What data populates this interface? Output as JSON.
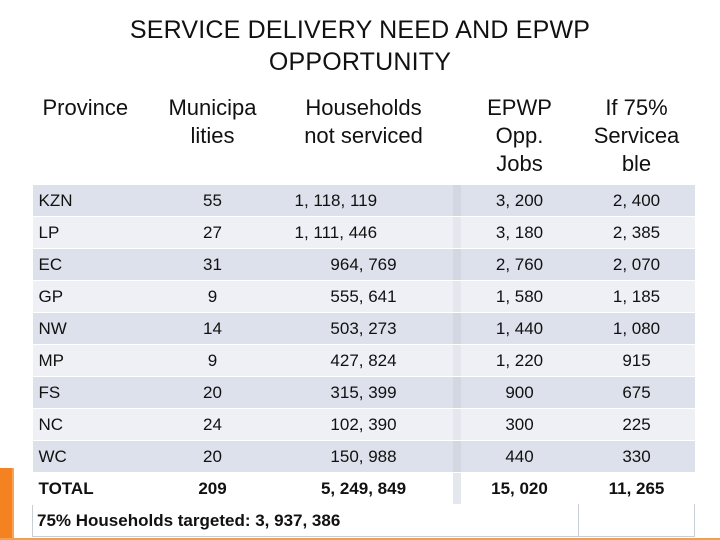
{
  "slide": {
    "title_line1": "SERVICE DELIVERY NEED AND EPWP",
    "title_line2": "OPPORTUNITY"
  },
  "table": {
    "headers": [
      "Province",
      "Municipa lities",
      "Households not serviced",
      "EPWP Opp. Jobs",
      "If 75% Servicea ble"
    ],
    "rows": [
      [
        "KZN",
        "55",
        "1, 118, 119",
        "3, 200",
        "2, 400"
      ],
      [
        "LP",
        "27",
        "1, 111, 446",
        "3, 180",
        "2, 385"
      ],
      [
        "EC",
        "31",
        "964, 769",
        "2, 760",
        "2, 070"
      ],
      [
        "GP",
        "9",
        "555, 641",
        "1, 580",
        "1, 185"
      ],
      [
        "NW",
        "14",
        "503, 273",
        "1, 440",
        "1, 080"
      ],
      [
        "MP",
        "9",
        "427, 824",
        "1, 220",
        "915"
      ],
      [
        "FS",
        "20",
        "315, 399",
        "900",
        "675"
      ],
      [
        "NC",
        "24",
        "102, 390",
        "300",
        "225"
      ],
      [
        "WC",
        "20",
        "150, 988",
        "440",
        "330"
      ]
    ],
    "total": [
      "TOTAL",
      "209",
      "5, 249, 849",
      "15, 020",
      "11, 265"
    ],
    "footnote": "75% Households targeted: 3, 937, 386"
  },
  "colors": {
    "accent": "#f58220",
    "row_band_dark": "#dde1eb",
    "row_band_light": "#eef0f5"
  }
}
